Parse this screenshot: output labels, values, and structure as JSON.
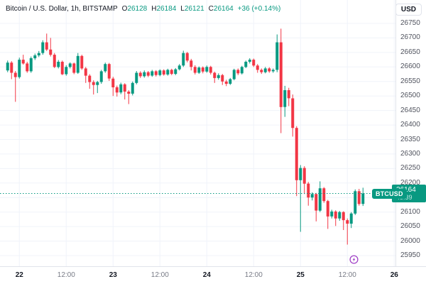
{
  "header": {
    "symbol": "Bitcoin / U.S. Dollar, 1h, BITSTAMP",
    "o_label": "O",
    "o_value": "26128",
    "h_label": "H",
    "h_value": "26184",
    "l_label": "L",
    "l_value": "26121",
    "c_label": "C",
    "c_value": "26164",
    "change": "+36 (+0.14%)"
  },
  "price_axis": {
    "currency": "USD",
    "visible_labels": [
      "26750",
      "26700",
      "26650",
      "26600",
      "26550",
      "26500",
      "26450",
      "26400",
      "26350",
      "26300",
      "26250",
      "26200",
      "26100",
      "26050",
      "26000",
      "25950"
    ]
  },
  "badge": {
    "symbol": "BTCUSD",
    "price": "26164",
    "countdown": "45:39"
  },
  "colors": {
    "up": "#089981",
    "down": "#f23645",
    "grid": "#f0f3fa",
    "event": "#a142c6"
  },
  "chart_data": {
    "type": "candlestick",
    "symbol": "BTCUSD",
    "exchange": "BITSTAMP",
    "interval": "1h",
    "current_bar": {
      "open": 26128,
      "high": 26184,
      "low": 26121,
      "close": 26164,
      "change_abs": 36,
      "change_pct": 0.14
    },
    "y_axis": {
      "min": 25950,
      "max": 26750,
      "tick_step": 50
    },
    "x_axis_ticks": [
      {
        "label": "22",
        "i": 3,
        "major": true
      },
      {
        "label": "12:00",
        "i": 15,
        "major": false
      },
      {
        "label": "23",
        "i": 27,
        "major": true
      },
      {
        "label": "12:00",
        "i": 39,
        "major": false
      },
      {
        "label": "24",
        "i": 51,
        "major": true
      },
      {
        "label": "12:00",
        "i": 63,
        "major": false
      },
      {
        "label": "25",
        "i": 75,
        "major": true
      },
      {
        "label": "12:00",
        "i": 87,
        "major": false
      },
      {
        "label": "26",
        "i": 99,
        "major": true
      }
    ],
    "candles": [
      [
        26588,
        26622,
        26582,
        26615
      ],
      [
        26615,
        26620,
        26558,
        26580
      ],
      [
        26580,
        26586,
        26480,
        26565
      ],
      [
        26565,
        26632,
        26560,
        26625
      ],
      [
        26625,
        26642,
        26608,
        26612
      ],
      [
        26612,
        26618,
        26580,
        26585
      ],
      [
        26585,
        26636,
        26580,
        26630
      ],
      [
        26630,
        26646,
        26624,
        26640
      ],
      [
        26640,
        26655,
        26634,
        26648
      ],
      [
        26648,
        26692,
        26642,
        26685
      ],
      [
        26685,
        26715,
        26655,
        26660
      ],
      [
        26660,
        26700,
        26636,
        26642
      ],
      [
        26642,
        26648,
        26596,
        26600
      ],
      [
        26600,
        26624,
        26595,
        26618
      ],
      [
        26618,
        26622,
        26572,
        26575
      ],
      [
        26575,
        26606,
        26570,
        26600
      ],
      [
        26600,
        26616,
        26595,
        26612
      ],
      [
        26612,
        26615,
        26575,
        26580
      ],
      [
        26580,
        26648,
        26576,
        26638
      ],
      [
        26638,
        26642,
        26590,
        26595
      ],
      [
        26595,
        26600,
        26545,
        26570
      ],
      [
        26570,
        26575,
        26525,
        26548
      ],
      [
        26548,
        26554,
        26505,
        26538
      ],
      [
        26538,
        26552,
        26510,
        26548
      ],
      [
        26548,
        26590,
        26542,
        26585
      ],
      [
        26585,
        26615,
        26580,
        26610
      ],
      [
        26610,
        26614,
        26552,
        26560
      ],
      [
        26560,
        26566,
        26500,
        26530
      ],
      [
        26530,
        26536,
        26498,
        26512
      ],
      [
        26512,
        26546,
        26506,
        26540
      ],
      [
        26540,
        26544,
        26488,
        26515
      ],
      [
        26515,
        26520,
        26472,
        26508
      ],
      [
        26508,
        26550,
        26502,
        26545
      ],
      [
        26545,
        26586,
        26540,
        26580
      ],
      [
        26580,
        26585,
        26562,
        26568
      ],
      [
        26568,
        26588,
        26563,
        26582
      ],
      [
        26582,
        26586,
        26565,
        26570
      ],
      [
        26570,
        26590,
        26566,
        26585
      ],
      [
        26585,
        26589,
        26567,
        26572
      ],
      [
        26572,
        26592,
        26568,
        26588
      ],
      [
        26588,
        26592,
        26570,
        26574
      ],
      [
        26574,
        26594,
        26570,
        26590
      ],
      [
        26590,
        26594,
        26572,
        26576
      ],
      [
        26576,
        26596,
        26572,
        26592
      ],
      [
        26592,
        26610,
        26588,
        26605
      ],
      [
        26605,
        26656,
        26600,
        26648
      ],
      [
        26648,
        26652,
        26616,
        26622
      ],
      [
        26622,
        26628,
        26588,
        26600
      ],
      [
        26600,
        26606,
        26574,
        26580
      ],
      [
        26580,
        26602,
        26576,
        26598
      ],
      [
        26598,
        26602,
        26578,
        26584
      ],
      [
        26584,
        26605,
        26580,
        26600
      ],
      [
        26600,
        26604,
        26574,
        26580
      ],
      [
        26580,
        26584,
        26545,
        26562
      ],
      [
        26562,
        26578,
        26556,
        26572
      ],
      [
        26572,
        26576,
        26538,
        26550
      ],
      [
        26550,
        26556,
        26534,
        26542
      ],
      [
        26542,
        26562,
        26538,
        26558
      ],
      [
        26558,
        26594,
        26554,
        26590
      ],
      [
        26590,
        26595,
        26572,
        26578
      ],
      [
        26578,
        26604,
        26574,
        26600
      ],
      [
        26600,
        26622,
        26596,
        26618
      ],
      [
        26618,
        26630,
        26612,
        26625
      ],
      [
        26625,
        26629,
        26600,
        26605
      ],
      [
        26605,
        26610,
        26580,
        26590
      ],
      [
        26590,
        26595,
        26576,
        26582
      ],
      [
        26582,
        26600,
        26578,
        26595
      ],
      [
        26595,
        26599,
        26580,
        26585
      ],
      [
        26585,
        26595,
        26580,
        26590
      ],
      [
        26590,
        26712,
        26582,
        26685
      ],
      [
        26685,
        26732,
        26372,
        26462
      ],
      [
        26462,
        26535,
        26428,
        26520
      ],
      [
        26520,
        26528,
        26465,
        26492
      ],
      [
        26492,
        26505,
        26360,
        26390
      ],
      [
        26390,
        26396,
        26155,
        26210
      ],
      [
        26210,
        26262,
        26032,
        26252
      ],
      [
        26252,
        26258,
        26162,
        26198
      ],
      [
        26198,
        26204,
        26122,
        26150
      ],
      [
        26150,
        26168,
        26140,
        26162
      ],
      [
        26162,
        26166,
        26068,
        26105
      ],
      [
        26105,
        26206,
        26100,
        26182
      ],
      [
        26182,
        26186,
        26132,
        26138
      ],
      [
        26138,
        26142,
        26042,
        26085
      ],
      [
        26085,
        26108,
        26078,
        26102
      ],
      [
        26102,
        26106,
        26052,
        26078
      ],
      [
        26078,
        26104,
        26070,
        26100
      ],
      [
        26100,
        26103,
        26038,
        26072
      ],
      [
        26072,
        26078,
        25988,
        26060
      ],
      [
        26060,
        26100,
        26045,
        26095
      ],
      [
        26095,
        26178,
        26090,
        26172
      ],
      [
        26172,
        26180,
        26122,
        26128
      ],
      [
        26128,
        26184,
        26121,
        26164
      ]
    ]
  }
}
